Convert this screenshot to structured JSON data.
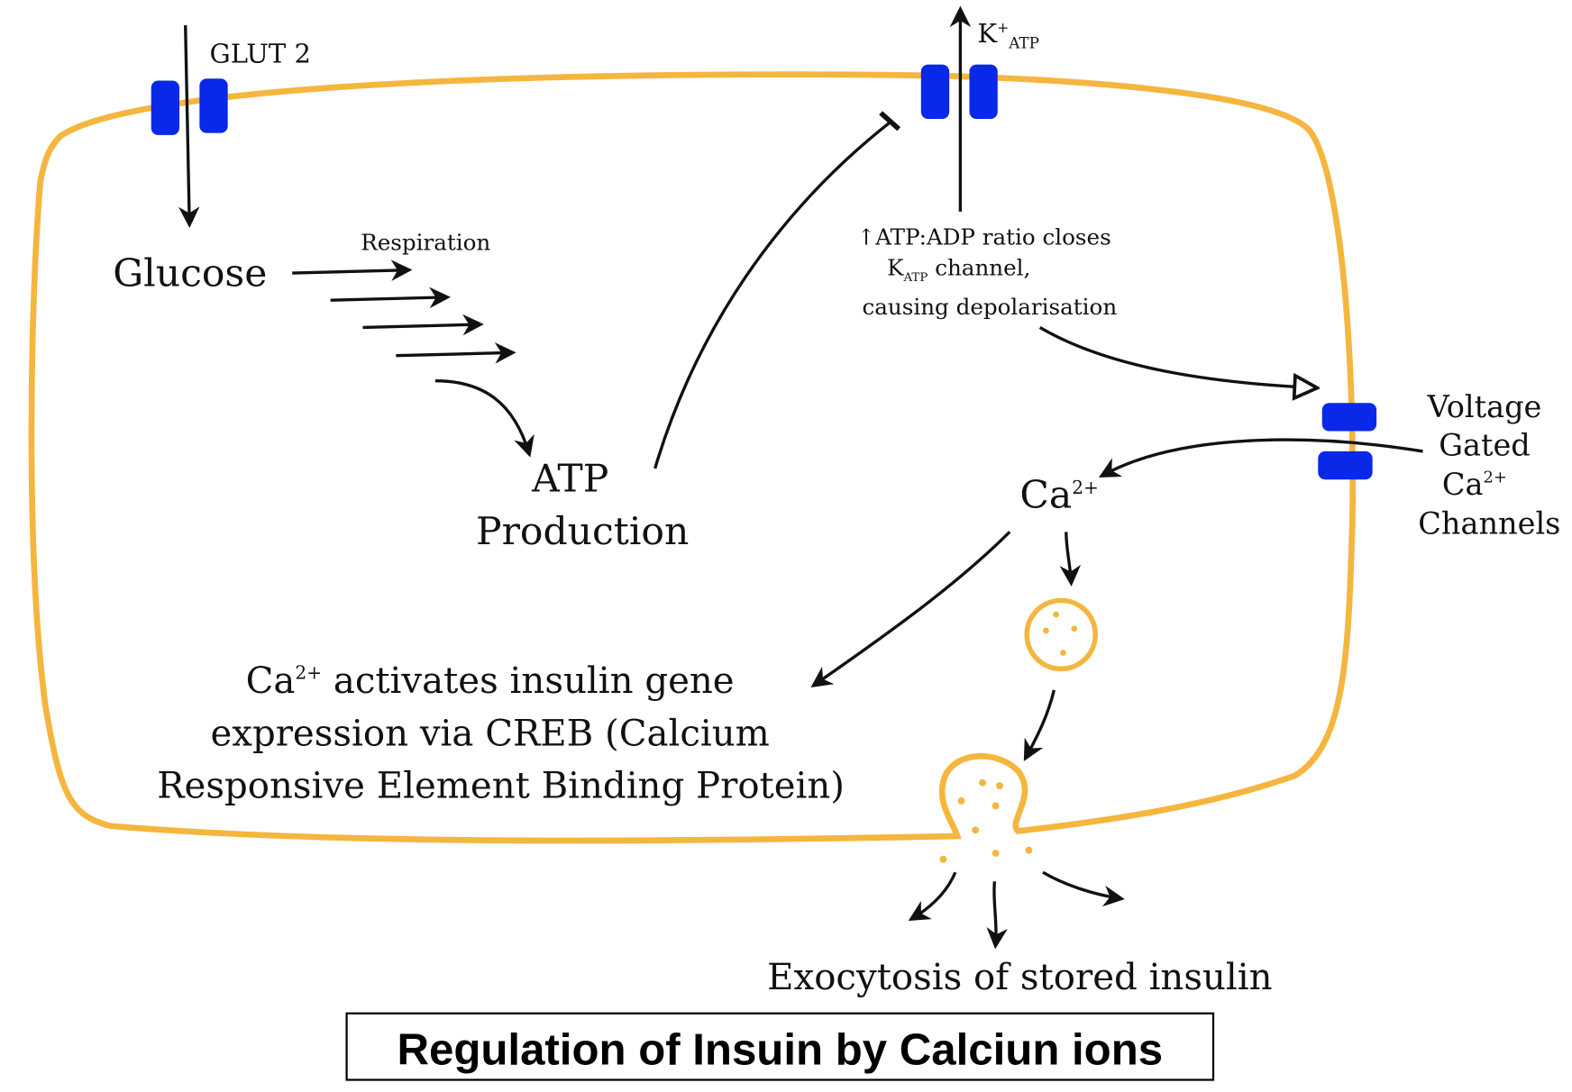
{
  "colors": {
    "membrane": "#f4b63f",
    "channel": "#0a28e8",
    "arrow": "#111111"
  },
  "labels": {
    "glut2": "GLUT 2",
    "katp_k": "K",
    "katp_plus": "+",
    "katp_sub": "ATP",
    "glucose": "Glucose",
    "respiration": "Respiration",
    "atp_line1": "ATP",
    "atp_line2": "Production",
    "ratio_line1": "↑ATP:ADP ratio closes",
    "ratio_line2_k": "K",
    "ratio_line2_sub": "ATP",
    "ratio_line2_rest": " channel,",
    "ratio_line3": "causing depolarisation",
    "vgcc_line1": "Voltage",
    "vgcc_line2": "Gated",
    "vgcc_line3": "Ca",
    "vgcc_line3_sup": "2+",
    "vgcc_line4": "Channels",
    "ca_ion": "Ca",
    "ca_ion_sup": "2+",
    "creb_line1_ca": "Ca",
    "creb_line1_sup": "2+",
    "creb_line1_rest": " activates insulin gene",
    "creb_line2": "expression via CREB (Calcium",
    "creb_line3": "Responsive Element Binding Protein)",
    "exocytosis": "Exocytosis of stored insulin"
  },
  "caption": "Regulation of Insuin by Calciun ions"
}
